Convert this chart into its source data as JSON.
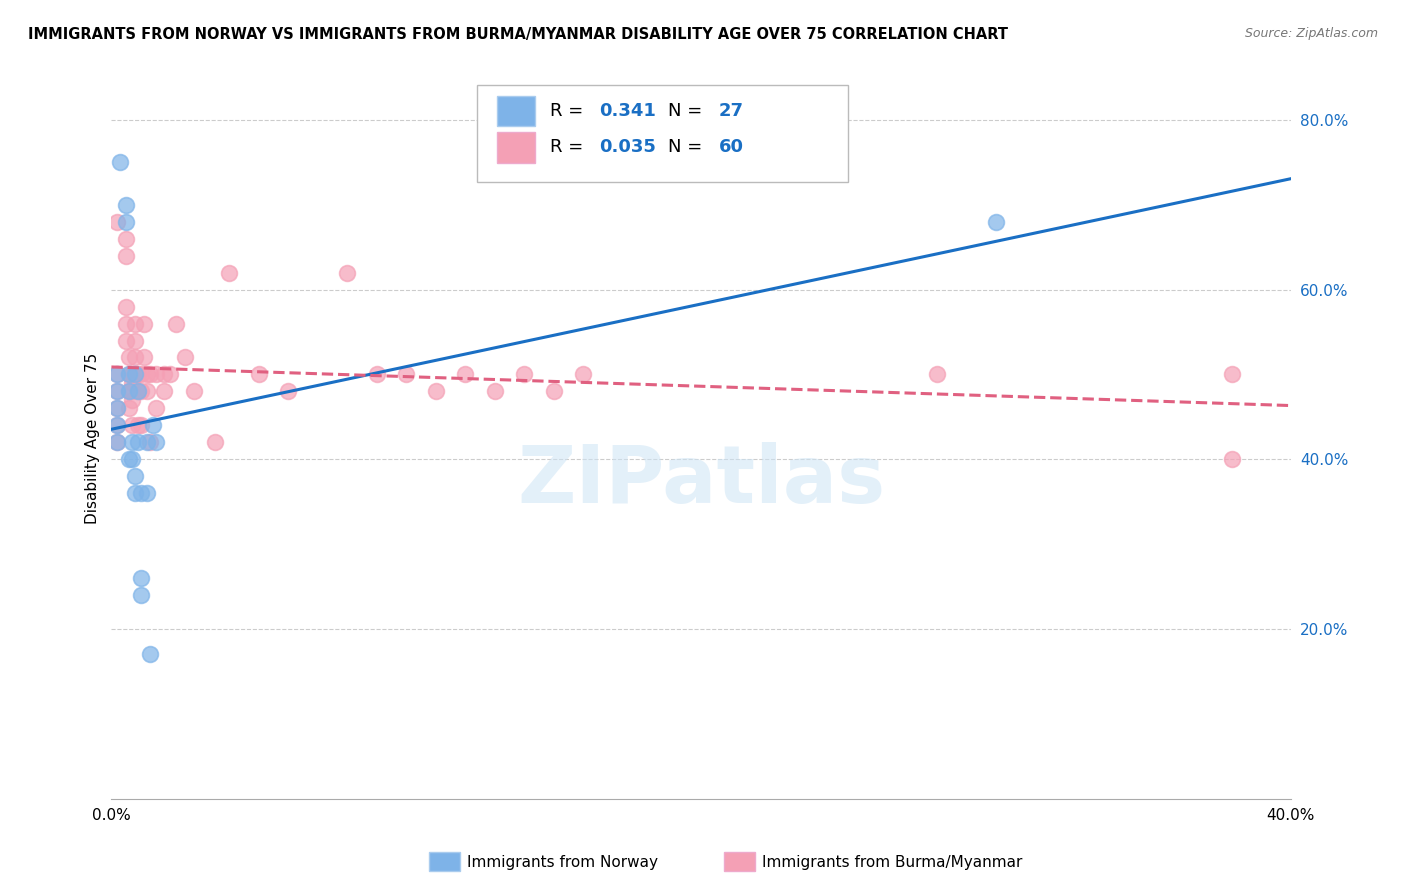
{
  "title": "IMMIGRANTS FROM NORWAY VS IMMIGRANTS FROM BURMA/MYANMAR DISABILITY AGE OVER 75 CORRELATION CHART",
  "source": "Source: ZipAtlas.com",
  "ylabel": "Disability Age Over 75",
  "watermark": "ZIPatlas",
  "xlim": [
    0.0,
    0.4
  ],
  "ylim": [
    0.0,
    0.85
  ],
  "norway_R": 0.341,
  "norway_N": 27,
  "burma_R": 0.035,
  "burma_N": 60,
  "norway_color": "#7eb3e8",
  "burma_color": "#f4a0b5",
  "norway_line_color": "#1a6fc4",
  "burma_line_color": "#e06080",
  "legend_label_norway": "Immigrants from Norway",
  "legend_label_burma": "Immigrants from Burma/Myanmar",
  "norway_x": [
    0.002,
    0.002,
    0.002,
    0.002,
    0.002,
    0.005,
    0.005,
    0.006,
    0.006,
    0.006,
    0.007,
    0.007,
    0.008,
    0.008,
    0.008,
    0.009,
    0.009,
    0.01,
    0.01,
    0.01,
    0.012,
    0.012,
    0.013,
    0.014,
    0.015,
    0.3,
    0.003
  ],
  "norway_y": [
    0.5,
    0.48,
    0.46,
    0.44,
    0.42,
    0.7,
    0.68,
    0.5,
    0.48,
    0.4,
    0.42,
    0.4,
    0.38,
    0.36,
    0.5,
    0.48,
    0.42,
    0.36,
    0.26,
    0.24,
    0.42,
    0.36,
    0.17,
    0.44,
    0.42,
    0.68,
    0.75
  ],
  "burma_x": [
    0.002,
    0.002,
    0.002,
    0.002,
    0.002,
    0.002,
    0.005,
    0.005,
    0.005,
    0.005,
    0.005,
    0.006,
    0.006,
    0.006,
    0.006,
    0.007,
    0.007,
    0.007,
    0.007,
    0.007,
    0.008,
    0.008,
    0.008,
    0.008,
    0.009,
    0.009,
    0.009,
    0.01,
    0.01,
    0.01,
    0.011,
    0.011,
    0.012,
    0.012,
    0.013,
    0.013,
    0.015,
    0.015,
    0.018,
    0.018,
    0.02,
    0.022,
    0.025,
    0.028,
    0.035,
    0.04,
    0.05,
    0.06,
    0.08,
    0.09,
    0.1,
    0.11,
    0.12,
    0.13,
    0.14,
    0.15,
    0.16,
    0.28,
    0.38,
    0.38
  ],
  "burma_y": [
    0.5,
    0.48,
    0.46,
    0.44,
    0.42,
    0.68,
    0.66,
    0.64,
    0.58,
    0.56,
    0.54,
    0.52,
    0.5,
    0.48,
    0.46,
    0.5,
    0.49,
    0.48,
    0.47,
    0.44,
    0.56,
    0.54,
    0.52,
    0.5,
    0.5,
    0.48,
    0.44,
    0.5,
    0.48,
    0.44,
    0.56,
    0.52,
    0.5,
    0.48,
    0.5,
    0.42,
    0.5,
    0.46,
    0.5,
    0.48,
    0.5,
    0.56,
    0.52,
    0.48,
    0.42,
    0.62,
    0.5,
    0.48,
    0.62,
    0.5,
    0.5,
    0.48,
    0.5,
    0.48,
    0.5,
    0.48,
    0.5,
    0.5,
    0.4,
    0.5
  ]
}
